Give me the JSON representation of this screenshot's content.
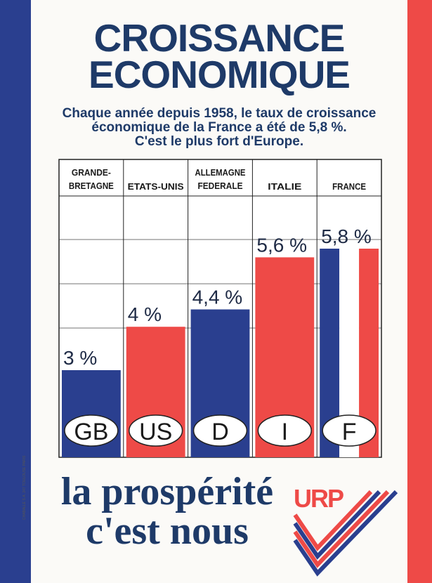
{
  "poster": {
    "title_line1": "CROISSANCE",
    "title_line2": "ECONOMIQUE",
    "subtitle_line1": "Chaque année depuis 1958, le taux de croissance",
    "subtitle_line2": "économique de la France a été de 5,8 %.",
    "subtitle_line3": "C'est le plus fort d'Europe.",
    "slogan_line1": "la prospérité",
    "slogan_line2": "c'est nous",
    "logo_text": "URP",
    "printer_credit": "CHABALLE S.A. 247 TOULOUSE PARIS"
  },
  "colors": {
    "blue": "#2a3f8f",
    "red": "#ee4a47",
    "navy_text": "#1e3a68"
  },
  "chart_data": {
    "type": "bar",
    "categories": [
      "GRANDE-BRETAGNE",
      "ETATS-UNIS",
      "ALLEMAGNE FEDERALE",
      "ITALIE",
      "FRANCE"
    ],
    "header_lines": [
      [
        "GRANDE-",
        "BRETAGNE"
      ],
      [
        "ETATS-UNIS"
      ],
      [
        "ALLEMAGNE",
        "FEDERALE"
      ],
      [
        "ITALIE"
      ],
      [
        "FRANCE"
      ]
    ],
    "values": [
      3,
      4,
      4.4,
      5.6,
      5.8
    ],
    "value_labels": [
      "3 %",
      "4 %",
      "4,4 %",
      "5,6 %",
      "5,8 %"
    ],
    "country_codes": [
      "GB",
      "US",
      "D",
      "I",
      "F"
    ],
    "bar_colors": [
      "blue",
      "red",
      "blue",
      "red",
      "tricolore"
    ],
    "grid": true
  }
}
